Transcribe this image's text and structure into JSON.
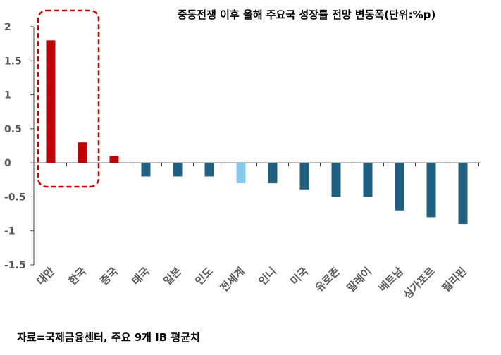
{
  "chart_data": {
    "type": "bar",
    "title": "중동전쟁 이후 올해 주요국 성장률 전망 변동폭(단위:%p)",
    "source": "자료=국제금융센터, 주요 9개 IB 평균치",
    "xlabel": "",
    "ylabel": "",
    "ylim": [
      -1.5,
      2
    ],
    "yticks": [
      "2",
      "1.5",
      "1",
      "0.5",
      "0",
      "-0.5",
      "-1",
      "-1.5"
    ],
    "ytick_values": [
      2,
      1.5,
      1,
      0.5,
      0,
      -0.5,
      -1,
      -1.5
    ],
    "grid": false,
    "categories": [
      "대만",
      "한국",
      "중국",
      "태국",
      "일본",
      "인도",
      "전세계",
      "인니",
      "미국",
      "유로존",
      "말레이",
      "베트남",
      "싱가포르",
      "필리핀"
    ],
    "values": [
      1.8,
      0.3,
      0.1,
      -0.2,
      -0.2,
      -0.2,
      -0.3,
      -0.3,
      -0.4,
      -0.5,
      -0.5,
      -0.7,
      -0.8,
      -0.9
    ],
    "colors": {
      "positive": "#c00000",
      "negative": "#1f5f7f",
      "world": "#87c9ec",
      "highlight_box": "#c00000",
      "axis": "#404040"
    },
    "highlight": [
      "대만",
      "한국"
    ]
  }
}
